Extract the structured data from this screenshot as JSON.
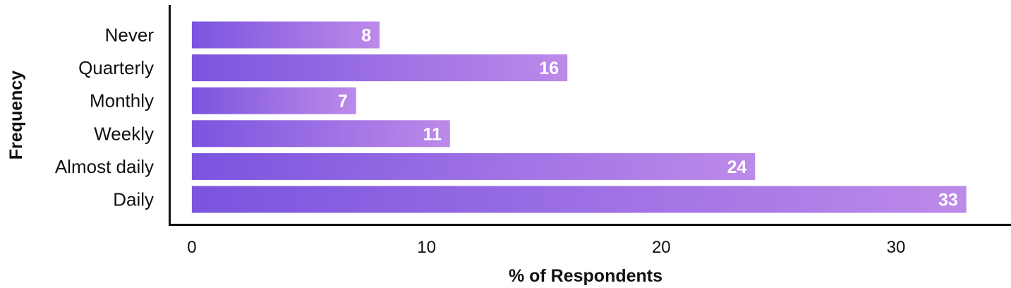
{
  "chart_data": {
    "type": "bar",
    "orientation": "horizontal",
    "title": "",
    "xlabel": "% of Respondents",
    "ylabel": "Frequency",
    "categories": [
      "Never",
      "Quarterly",
      "Monthly",
      "Weekly",
      "Almost daily",
      "Daily"
    ],
    "values": [
      8,
      16,
      7,
      11,
      24,
      33
    ],
    "data_labels": [
      "8",
      "16",
      "7",
      "11",
      "24",
      "33"
    ],
    "xlim": [
      -0.9,
      34.9
    ],
    "xticks": [
      0,
      10,
      20,
      30
    ],
    "xtick_labels": [
      "0",
      "10",
      "20",
      "30"
    ],
    "grid": false,
    "legend": "none",
    "colors": {
      "bar_start": "#7b54df",
      "bar_end": "#bd8ae9",
      "axis": "#111111",
      "label": "#ffffff"
    }
  }
}
